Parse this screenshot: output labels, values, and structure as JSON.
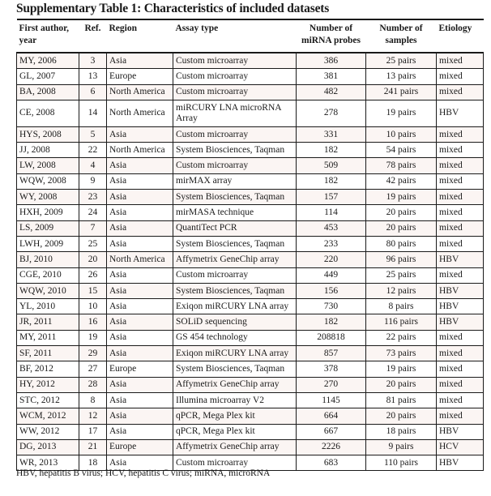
{
  "title": "Supplementary Table 1: Characteristics of included datasets",
  "columns": [
    "First author, year",
    "Ref.",
    "Region",
    "Assay type",
    "Number of miRNA probes",
    "Number of samples",
    "Etiology"
  ],
  "rows": [
    [
      "MY, 2006",
      "3",
      "Asia",
      "Custom microarray",
      "386",
      "25 pairs",
      "mixed"
    ],
    [
      "GL, 2007",
      "13",
      "Europe",
      "Custom microarray",
      "381",
      "13 pairs",
      "mixed"
    ],
    [
      "BA, 2008",
      "6",
      "North America",
      "Custom microarray",
      "482",
      "241 pairs",
      "mixed"
    ],
    [
      "CE, 2008",
      "14",
      "North America",
      "miRCURY LNA microRNA Array",
      "278",
      "19 pairs",
      "HBV"
    ],
    [
      "HYS, 2008",
      "5",
      "Asia",
      "Custom microarray",
      "331",
      "10 pairs",
      "mixed"
    ],
    [
      "JJ, 2008",
      "22",
      "North America",
      "System Biosciences, Taqman",
      "182",
      "54 pairs",
      "mixed"
    ],
    [
      "LW, 2008",
      "4",
      "Asia",
      "Custom microarray",
      "509",
      "78 pairs",
      "mixed"
    ],
    [
      "WQW, 2008",
      "9",
      "Asia",
      "mirMAX array",
      "182",
      "42 pairs",
      "mixed"
    ],
    [
      "WY, 2008",
      "23",
      "Asia",
      "System Biosciences, Taqman",
      "157",
      "19 pairs",
      "mixed"
    ],
    [
      "HXH, 2009",
      "24",
      "Asia",
      "mirMASA technique",
      "114",
      "20 pairs",
      "mixed"
    ],
    [
      "LS, 2009",
      "7",
      "Asia",
      "QuantiTect PCR",
      "453",
      "20 pairs",
      "mixed"
    ],
    [
      "LWH, 2009",
      "25",
      "Asia",
      "System Biosciences, Taqman",
      "233",
      "80 pairs",
      "mixed"
    ],
    [
      "BJ, 2010",
      "20",
      "North America",
      "Affymetrix GeneChip array",
      "220",
      "96 pairs",
      "HBV"
    ],
    [
      "CGE, 2010",
      "26",
      "Asia",
      "Custom microarray",
      "449",
      "25 pairs",
      "mixed"
    ],
    [
      "WQW, 2010",
      "15",
      "Asia",
      "System Biosciences, Taqman",
      "156",
      "12 pairs",
      "HBV"
    ],
    [
      "YL, 2010",
      "10",
      "Asia",
      "Exiqon miRCURY LNA array",
      "730",
      "8 pairs",
      "HBV"
    ],
    [
      "JR, 2011",
      "16",
      "Asia",
      "SOLiD sequencing",
      "182",
      "116 pairs",
      "HBV"
    ],
    [
      "MY, 2011",
      "19",
      "Asia",
      "GS 454 technology",
      "208818",
      "22 pairs",
      "mixed"
    ],
    [
      "SF, 2011",
      "29",
      "Asia",
      "Exiqon miRCURY LNA array",
      "857",
      "73 pairs",
      "mixed"
    ],
    [
      "BF, 2012",
      "27",
      "Europe",
      "System Biosciences, Taqman",
      "378",
      "19 pairs",
      "mixed"
    ],
    [
      "HY, 2012",
      "28",
      "Asia",
      "Affymetrix GeneChip array",
      "270",
      "20 pairs",
      "mixed"
    ],
    [
      "STC, 2012",
      "8",
      "Asia",
      "Illumina microarray V2",
      "1145",
      "81 pairs",
      "mixed"
    ],
    [
      "WCM, 2012",
      "12",
      "Asia",
      "qPCR, Mega Plex kit",
      "664",
      "20 pairs",
      "mixed"
    ],
    [
      "WW, 2012",
      "17",
      "Asia",
      "qPCR, Mega Plex kit",
      "667",
      "18 pairs",
      "HBV"
    ],
    [
      "DG, 2013",
      "21",
      "Europe",
      "Affymetrix GeneChip array",
      "2226",
      "9 pairs",
      "HCV"
    ],
    [
      "WR, 2013",
      "18",
      "Asia",
      "Custom microarray",
      "683",
      "110 pairs",
      "HBV"
    ]
  ],
  "footnote": "HBV, hepatitis B virus; HCV, hepatitis C virus; miRNA, microRNA",
  "colors": {
    "row_shade": "#fbf5f3",
    "text": "#1a1a1a"
  }
}
